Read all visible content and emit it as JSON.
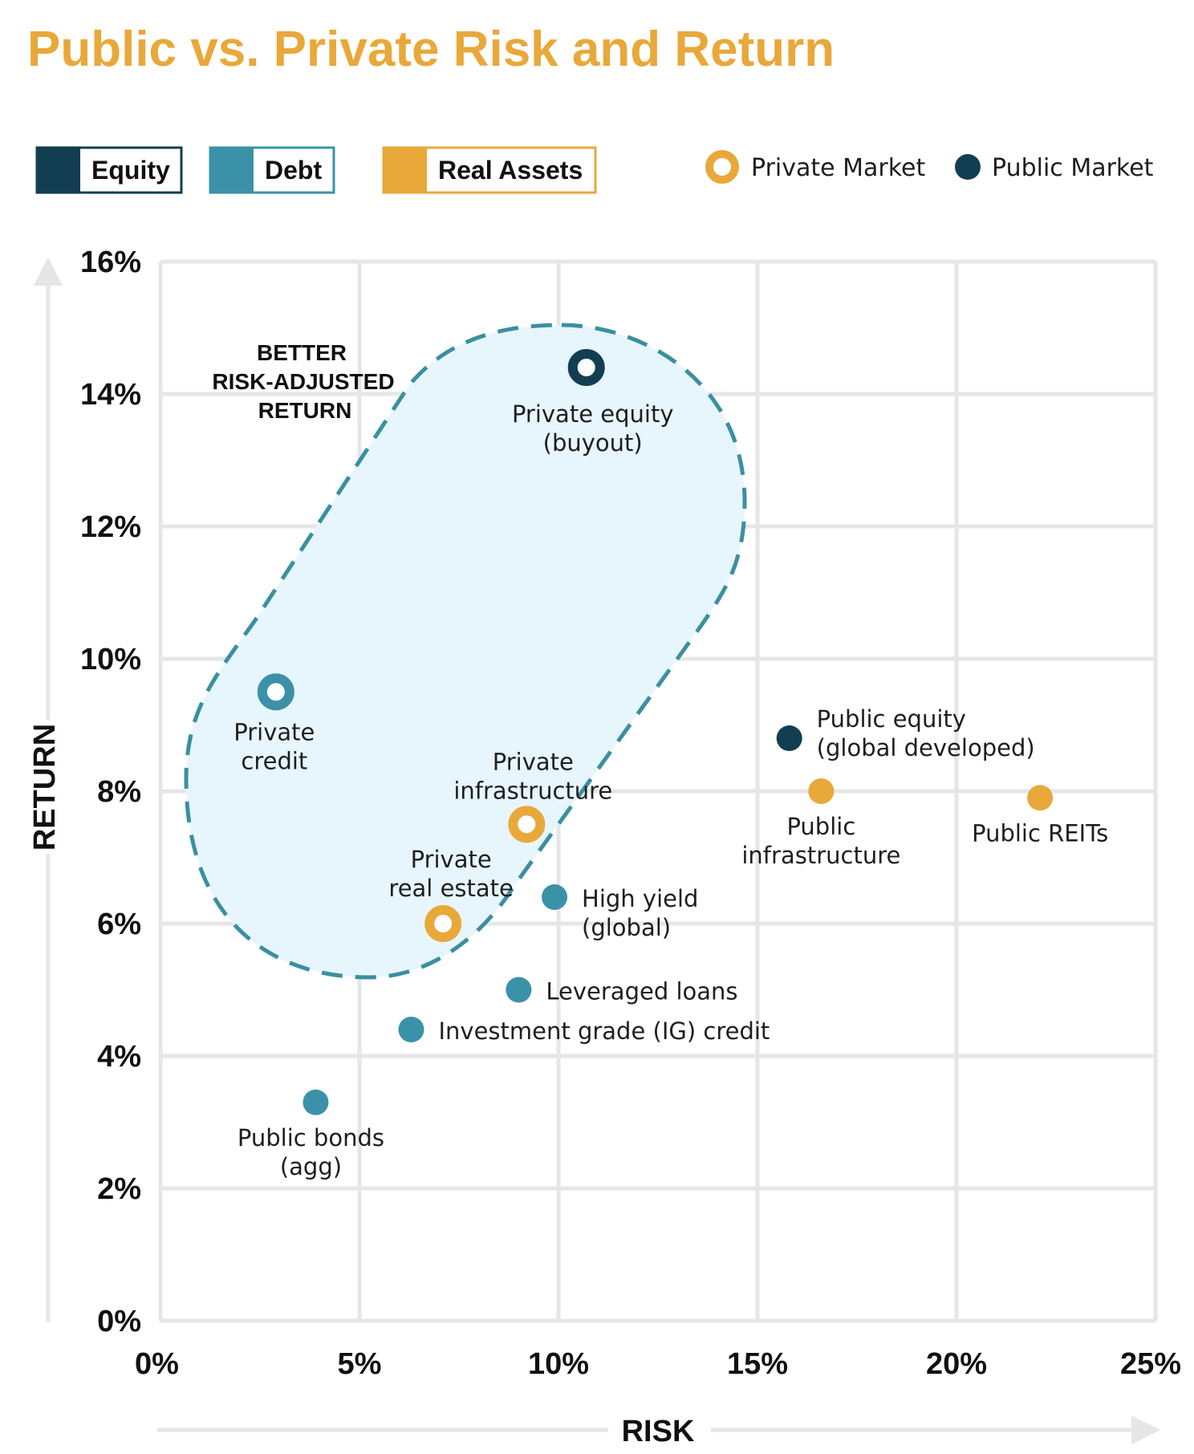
{
  "title": "Public vs. Private Risk and Return",
  "colors": {
    "title": "#E9A83A",
    "equity": "#133E52",
    "debt": "#3B92A8",
    "real_assets": "#E9A83A",
    "grid": "#E6E6E8",
    "region_fill": "#E7F6FD",
    "region_stroke": "#3B8FA1"
  },
  "legend": {
    "categories": [
      {
        "label": "Equity",
        "color_key": "equity"
      },
      {
        "label": "Debt",
        "color_key": "debt"
      },
      {
        "label": "Real Assets",
        "color_key": "real_assets"
      }
    ],
    "markers": [
      {
        "label": "Private Market",
        "style": "ring",
        "color_key": "real_assets"
      },
      {
        "label": "Public Market",
        "style": "filled",
        "color_key": "equity"
      }
    ]
  },
  "chart_data": {
    "type": "scatter",
    "title": "Public vs. Private Risk and Return",
    "xlabel": "RISK",
    "ylabel": "RETURN",
    "xlim": [
      0,
      25
    ],
    "ylim": [
      0,
      16
    ],
    "x_ticks": [
      "0%",
      "5%",
      "10%",
      "15%",
      "20%",
      "25%"
    ],
    "y_ticks": [
      "0%",
      "2%",
      "4%",
      "6%",
      "8%",
      "10%",
      "12%",
      "14%",
      "16%"
    ],
    "grid": true,
    "legend_position": "top",
    "region_label": [
      "BETTER",
      "RISK-ADJUSTED",
      "RETURN"
    ],
    "points": [
      {
        "label": [
          "Private equity",
          "(buyout)"
        ],
        "x": 10.7,
        "y": 14.4,
        "category": "equity",
        "market": "private"
      },
      {
        "label": [
          "Private",
          "credit"
        ],
        "x": 2.9,
        "y": 9.5,
        "category": "debt",
        "market": "private"
      },
      {
        "label": [
          "Private",
          "infrastructure"
        ],
        "x": 9.2,
        "y": 7.5,
        "category": "real_assets",
        "market": "private"
      },
      {
        "label": [
          "Private",
          "real estate"
        ],
        "x": 7.1,
        "y": 6.0,
        "category": "real_assets",
        "market": "private"
      },
      {
        "label": [
          "Public equity",
          "(global developed)"
        ],
        "x": 15.8,
        "y": 8.8,
        "category": "equity",
        "market": "public"
      },
      {
        "label": [
          "Public",
          "infrastructure"
        ],
        "x": 16.6,
        "y": 8.0,
        "category": "real_assets",
        "market": "public"
      },
      {
        "label": [
          "Public REITs"
        ],
        "x": 22.1,
        "y": 7.9,
        "category": "real_assets",
        "market": "public"
      },
      {
        "label": [
          "High yield",
          "(global)"
        ],
        "x": 9.9,
        "y": 6.4,
        "category": "debt",
        "market": "public"
      },
      {
        "label": [
          "Leveraged loans"
        ],
        "x": 9.0,
        "y": 5.0,
        "category": "debt",
        "market": "public"
      },
      {
        "label": [
          "Investment grade (IG) credit"
        ],
        "x": 6.3,
        "y": 4.4,
        "category": "debt",
        "market": "public"
      },
      {
        "label": [
          "Public bonds",
          "(agg)"
        ],
        "x": 3.9,
        "y": 3.3,
        "category": "debt",
        "market": "public"
      }
    ]
  }
}
